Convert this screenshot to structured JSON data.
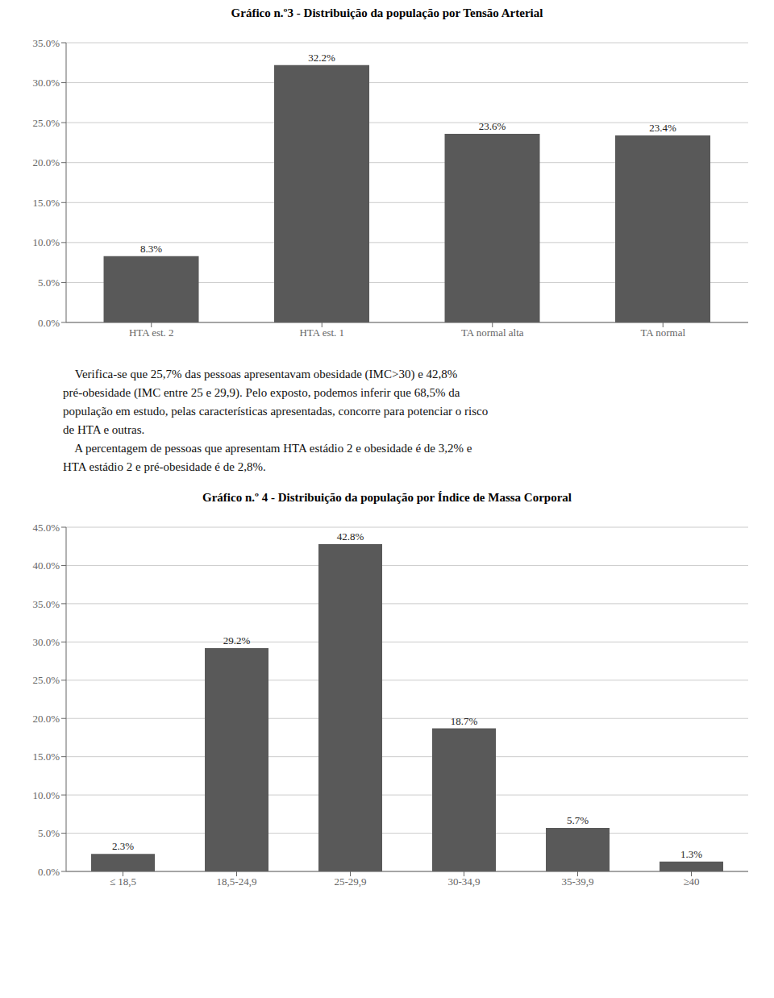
{
  "chart_data": [
    {
      "type": "bar",
      "title": "Gráfico n.º3 - Distribuição da população por Tensão Arterial",
      "categories": [
        "HTA est. 2",
        "HTA est. 1",
        "TA normal alta",
        "TA normal"
      ],
      "values": [
        8.3,
        32.2,
        23.6,
        23.4
      ],
      "value_labels": [
        "8.3%",
        "32.2%",
        "23.6%",
        "23.4%"
      ],
      "data_labels": true,
      "color": "#595959",
      "ylim": [
        0,
        35
      ],
      "yticks": [
        {
          "value": 0,
          "label": "0.0%"
        },
        {
          "value": 5,
          "label": "5.0%"
        },
        {
          "value": 10,
          "label": "10.0%"
        },
        {
          "value": 15,
          "label": "15.0%"
        },
        {
          "value": 20,
          "label": "20.0%"
        },
        {
          "value": 25,
          "label": "25.0%"
        },
        {
          "value": 30,
          "label": "30.0%"
        },
        {
          "value": 35,
          "label": "35.0%"
        }
      ],
      "grid": true,
      "annotations": [
        "    Verifica-se que 25,7% das pessoas apresentavam obesidade (IMC>30) e 42,8%",
        "pré-obesidade (IMC entre 25 e 29,9). Pelo exposto, podemos inferir que 68,5% da",
        "população em estudo, pelas características apresentadas, concorre para potenciar o risco",
        "de HTA e outras.",
        "    A percentagem de pessoas que apresentam HTA estádio 2 e obesidade é de 3,2% e",
        "HTA estádio 2 e pré-obesidade é de 2,8%."
      ]
    },
    {
      "type": "bar",
      "title": "Gráfico n.º 4 - Distribuição da população por Índice de Massa Corporal",
      "categories": [
        "≤ 18,5",
        "18,5-24,9",
        "25-29,9",
        "30-34,9",
        "35-39,9",
        "≥40"
      ],
      "values": [
        2.3,
        29.2,
        42.8,
        18.7,
        5.7,
        1.3
      ],
      "value_labels": [
        "2.3%",
        "29.2%",
        "42.8%",
        "18.7%",
        "5.7%",
        "1.3%"
      ],
      "data_labels": true,
      "color": "#595959",
      "ylim": [
        0,
        45
      ],
      "yticks": [
        {
          "value": 0,
          "label": "0.0%"
        },
        {
          "value": 5,
          "label": "5.0%"
        },
        {
          "value": 10,
          "label": "10.0%"
        },
        {
          "value": 15,
          "label": "15.0%"
        },
        {
          "value": 20,
          "label": "20.0%"
        },
        {
          "value": 25,
          "label": "25.0%"
        },
        {
          "value": 30,
          "label": "30.0%"
        },
        {
          "value": 35,
          "label": "35.0%"
        },
        {
          "value": 40,
          "label": "40.0%"
        },
        {
          "value": 45,
          "label": "45.0%"
        }
      ],
      "grid": true
    }
  ]
}
